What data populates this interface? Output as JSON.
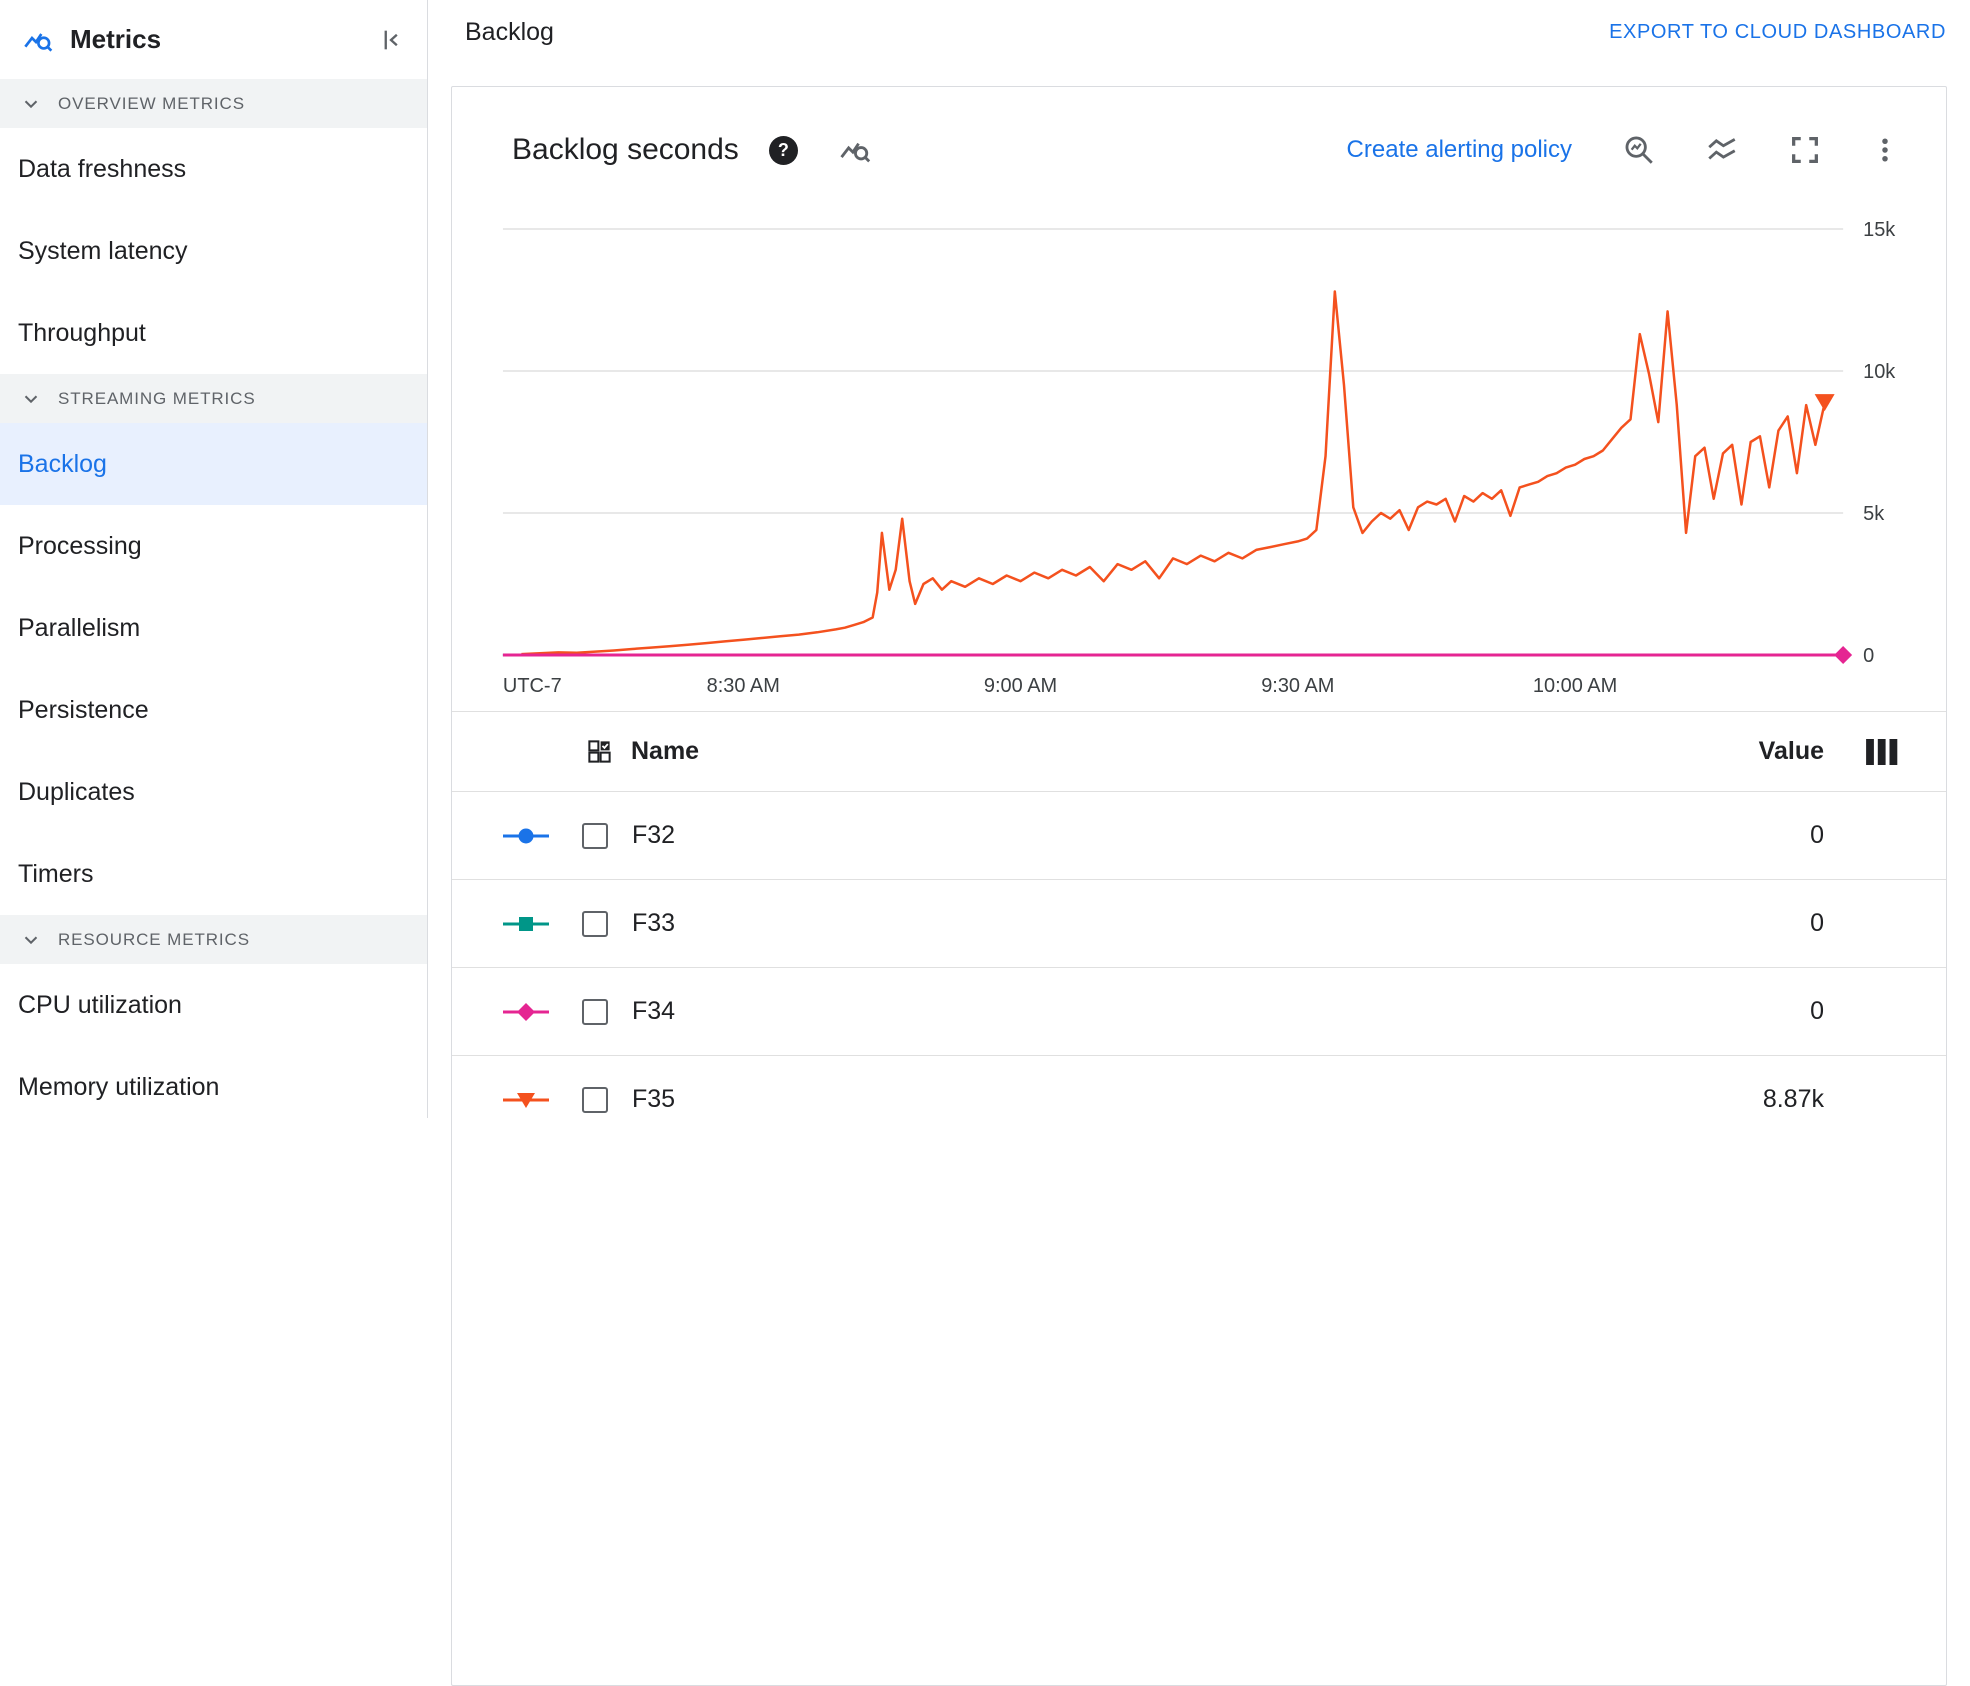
{
  "sidebar": {
    "title": "Metrics",
    "sections": [
      {
        "label": "OVERVIEW METRICS",
        "items": [
          "Data freshness",
          "System latency",
          "Throughput"
        ]
      },
      {
        "label": "STREAMING METRICS",
        "items": [
          "Backlog",
          "Processing",
          "Parallelism",
          "Persistence",
          "Duplicates",
          "Timers"
        ],
        "selected_item": "Backlog"
      },
      {
        "label": "RESOURCE METRICS",
        "items": [
          "CPU utilization",
          "Memory utilization"
        ]
      }
    ]
  },
  "header": {
    "title": "Backlog",
    "export_label": "EXPORT TO CLOUD DASHBOARD"
  },
  "card": {
    "title": "Backlog seconds",
    "alerting_link": "Create alerting policy",
    "help_glyph": "?"
  },
  "chart_data": {
    "type": "line",
    "title": "Backlog seconds",
    "x_axis": {
      "note": "minutes after 8:00 AM, timezone UTC-7",
      "label_left": "UTC-7",
      "range_minutes": [
        4,
        149
      ],
      "ticks": [
        {
          "x": 30,
          "label": "8:30 AM"
        },
        {
          "x": 60,
          "label": "9:00 AM"
        },
        {
          "x": 90,
          "label": "9:30 AM"
        },
        {
          "x": 120,
          "label": "10:00 AM"
        }
      ]
    },
    "y_axis": {
      "position": "right",
      "range": [
        0,
        15300
      ],
      "ticks": [
        0,
        5000,
        10000,
        15000
      ],
      "tick_labels": [
        "0",
        "5k",
        "10k",
        "15k"
      ],
      "grid": true
    },
    "series": [
      {
        "name": "F32",
        "color": "#1a73e8",
        "marker": "circle",
        "value_label": "0",
        "end_marker": false,
        "points": [
          [
            4,
            0
          ],
          [
            149,
            0
          ]
        ]
      },
      {
        "name": "F33",
        "color": "#009688",
        "marker": "square",
        "value_label": "0",
        "end_marker": false,
        "points": [
          [
            4,
            0
          ],
          [
            149,
            0
          ]
        ]
      },
      {
        "name": "F35",
        "color": "#f4511e",
        "marker": "triangle-down",
        "value_label": "8.87k",
        "end_marker": true,
        "points": [
          [
            6,
            30
          ],
          [
            8,
            60
          ],
          [
            10,
            90
          ],
          [
            12,
            80
          ],
          [
            14,
            120
          ],
          [
            16,
            160
          ],
          [
            18,
            210
          ],
          [
            20,
            260
          ],
          [
            22,
            310
          ],
          [
            24,
            360
          ],
          [
            26,
            420
          ],
          [
            28,
            480
          ],
          [
            30,
            540
          ],
          [
            32,
            600
          ],
          [
            34,
            660
          ],
          [
            36,
            720
          ],
          [
            38,
            800
          ],
          [
            40,
            900
          ],
          [
            41,
            960
          ],
          [
            42,
            1060
          ],
          [
            43,
            1160
          ],
          [
            44,
            1320
          ],
          [
            44.5,
            2200
          ],
          [
            45,
            4300
          ],
          [
            45.8,
            2300
          ],
          [
            46.5,
            3000
          ],
          [
            47.2,
            4800
          ],
          [
            48,
            2600
          ],
          [
            48.6,
            1800
          ],
          [
            49.5,
            2500
          ],
          [
            50.5,
            2700
          ],
          [
            51.5,
            2300
          ],
          [
            52.5,
            2600
          ],
          [
            54,
            2400
          ],
          [
            55.5,
            2700
          ],
          [
            57,
            2500
          ],
          [
            58.5,
            2800
          ],
          [
            60,
            2600
          ],
          [
            61.5,
            2900
          ],
          [
            63,
            2700
          ],
          [
            64.5,
            3000
          ],
          [
            66,
            2800
          ],
          [
            67.5,
            3100
          ],
          [
            69,
            2600
          ],
          [
            70.5,
            3200
          ],
          [
            72,
            3000
          ],
          [
            73.5,
            3300
          ],
          [
            75,
            2700
          ],
          [
            76.5,
            3400
          ],
          [
            78,
            3200
          ],
          [
            79.5,
            3500
          ],
          [
            81,
            3300
          ],
          [
            82.5,
            3600
          ],
          [
            84,
            3400
          ],
          [
            85.5,
            3700
          ],
          [
            87,
            3800
          ],
          [
            88.5,
            3900
          ],
          [
            90,
            4000
          ],
          [
            91,
            4100
          ],
          [
            92,
            4400
          ],
          [
            93,
            7000
          ],
          [
            94,
            12800
          ],
          [
            95,
            9500
          ],
          [
            96,
            5200
          ],
          [
            97,
            4300
          ],
          [
            98,
            4700
          ],
          [
            99,
            5000
          ],
          [
            100,
            4800
          ],
          [
            101,
            5100
          ],
          [
            102,
            4400
          ],
          [
            103,
            5200
          ],
          [
            104,
            5400
          ],
          [
            105,
            5300
          ],
          [
            106,
            5500
          ],
          [
            107,
            4700
          ],
          [
            108,
            5600
          ],
          [
            109,
            5400
          ],
          [
            110,
            5700
          ],
          [
            111,
            5500
          ],
          [
            112,
            5800
          ],
          [
            113,
            4900
          ],
          [
            114,
            5900
          ],
          [
            115,
            6000
          ],
          [
            116,
            6100
          ],
          [
            117,
            6300
          ],
          [
            118,
            6400
          ],
          [
            119,
            6600
          ],
          [
            120,
            6700
          ],
          [
            121,
            6900
          ],
          [
            122,
            7000
          ],
          [
            123,
            7200
          ],
          [
            124,
            7600
          ],
          [
            125,
            8000
          ],
          [
            126,
            8300
          ],
          [
            127,
            11300
          ],
          [
            128,
            9900
          ],
          [
            129,
            8200
          ],
          [
            130,
            12100
          ],
          [
            131,
            8800
          ],
          [
            132,
            4300
          ],
          [
            133,
            7000
          ],
          [
            134,
            7300
          ],
          [
            135,
            5500
          ],
          [
            136,
            7100
          ],
          [
            137,
            7400
          ],
          [
            138,
            5300
          ],
          [
            139,
            7500
          ],
          [
            140,
            7700
          ],
          [
            141,
            5900
          ],
          [
            142,
            7900
          ],
          [
            143,
            8400
          ],
          [
            144,
            6400
          ],
          [
            145,
            8800
          ],
          [
            146,
            7400
          ],
          [
            147,
            8870
          ]
        ]
      },
      {
        "name": "F34",
        "color": "#e52592",
        "marker": "diamond",
        "value_label": "0",
        "end_marker": true,
        "points": [
          [
            4,
            0
          ],
          [
            149,
            0
          ]
        ]
      }
    ]
  },
  "table": {
    "name_header": "Name",
    "value_header": "Value",
    "rows": [
      {
        "name": "F32",
        "value": "0",
        "color": "#1a73e8",
        "marker": "circle"
      },
      {
        "name": "F33",
        "value": "0",
        "color": "#009688",
        "marker": "square"
      },
      {
        "name": "F34",
        "value": "0",
        "color": "#e52592",
        "marker": "diamond"
      },
      {
        "name": "F35",
        "value": "8.87k",
        "color": "#f4511e",
        "marker": "triangle-down"
      }
    ]
  }
}
